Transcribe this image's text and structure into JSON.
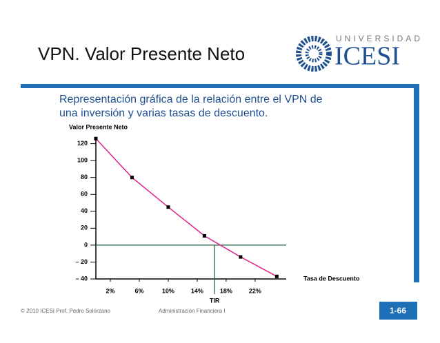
{
  "slide": {
    "title": "VPN. Valor Presente Neto",
    "subtitle": [
      "Representación gráfica de la relación entre el VPN de",
      "una inversión y varias tasas de descuento."
    ],
    "logo_top": "UNIVERSIDAD",
    "logo_name": "ICESI",
    "footer_left": "© 2010  ICESI   Prof. Pedro Solórzano",
    "footer_center": "Administración Financiera I",
    "page": "1-66"
  },
  "chart_data": {
    "type": "line",
    "y_label": "Valor Presente Neto",
    "x_label": "Tasa de Descuento",
    "annotation": "TIR",
    "x": [
      0,
      5,
      10,
      15,
      20,
      25
    ],
    "series": [
      {
        "color": "#e0218a",
        "values": [
          126,
          80,
          45,
          11,
          -14,
          -37
        ]
      }
    ],
    "irr": 16.4,
    "xlim": [
      0,
      26.3
    ],
    "ylim": [
      -40,
      127
    ],
    "xticks": [
      {
        "value": 2,
        "label": "2%"
      },
      {
        "value": 6,
        "label": "6%"
      },
      {
        "value": 10,
        "label": "10%"
      },
      {
        "value": 14,
        "label": "14%"
      },
      {
        "value": 18,
        "label": "18%"
      },
      {
        "value": 22,
        "label": "22%"
      }
    ],
    "yticks": [
      {
        "value": -40,
        "label": "– 40"
      },
      {
        "value": -20,
        "label": "– 20"
      },
      0,
      20,
      40,
      60,
      80,
      100,
      120
    ]
  }
}
